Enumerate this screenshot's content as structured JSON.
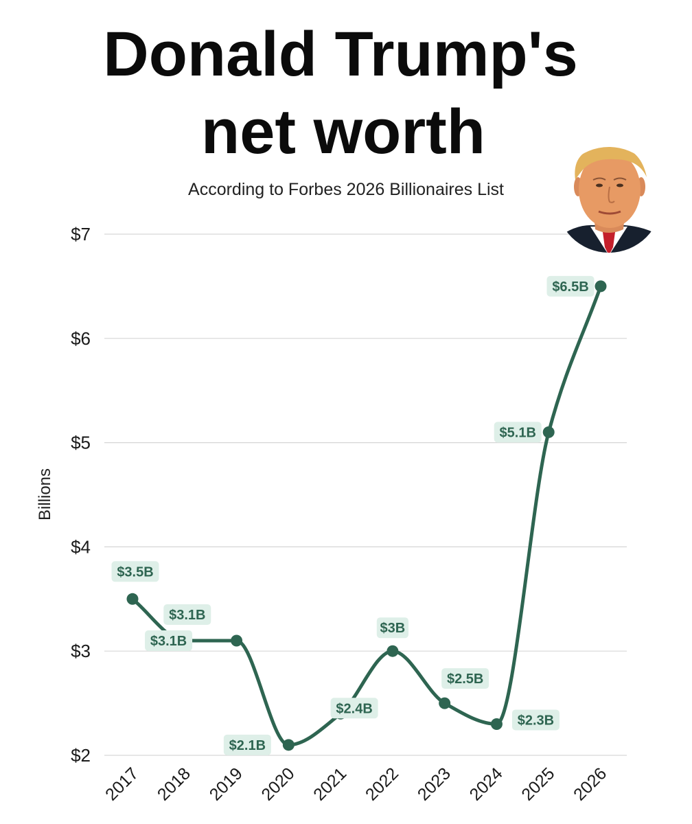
{
  "chart_data": {
    "type": "line",
    "title_lines": [
      "Donald Trump's",
      "net worth"
    ],
    "subtitle": "According to Forbes 2026 Billionaires List",
    "xlabel": "",
    "ylabel": "Billions",
    "x": [
      "2017",
      "2018",
      "2019",
      "2020",
      "2021",
      "2022",
      "2023",
      "2024",
      "2025",
      "2026"
    ],
    "series": [
      {
        "values": [
          3.5,
          3.1,
          3.1,
          2.1,
          2.4,
          3.0,
          2.5,
          2.3,
          5.1,
          6.5
        ],
        "data_labels": [
          "$3.5B",
          "$3.1B",
          "$3.1B",
          "$2.1B",
          "$2.4B",
          "$3B",
          "$2.5B",
          "$2.3B",
          "$5.1B",
          "$6.5B"
        ]
      }
    ],
    "ylim": [
      2,
      7
    ],
    "yticks": [
      2,
      3,
      4,
      5,
      6,
      7
    ],
    "ytick_labels": [
      "$2",
      "$3",
      "$4",
      "$5",
      "$6",
      "$7"
    ],
    "grid": true,
    "colors": {
      "line": "#2e6551",
      "label_bg": "#deefe8",
      "label_text": "#2e6551",
      "grid": "#d6d6d6"
    },
    "portrait": {
      "icon": "portrait-photo-icon",
      "colors": {
        "hair": "#e3b35c",
        "skin": "#e79a64",
        "suit": "#17202e",
        "shirt": "#ffffff",
        "tie": "#c41f2b"
      }
    }
  }
}
